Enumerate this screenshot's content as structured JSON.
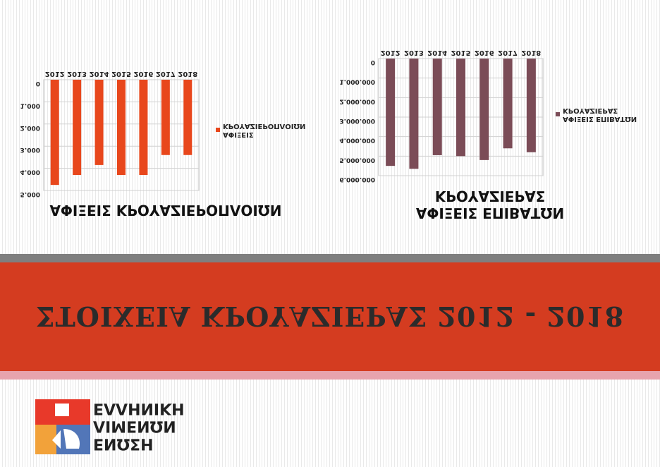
{
  "charts": {
    "chart_data": [
      {
        "type": "bar",
        "title": "ΑΦΙΞΕΙΣ ΚΡΟΥΑΖΙΕΡΟΠΛΟΙΩΝ",
        "categories": [
          "2012",
          "2013",
          "2014",
          "2015",
          "2016",
          "2017",
          "2018"
        ],
        "series": [
          {
            "name": "ΑΦΙΞΕΙΣ",
            "values": [
              4750,
              4300,
              3850,
              4300,
              4300,
              3400,
              3400
            ]
          }
        ],
        "legend_header": "ΚΡΟΥΑΖΙΕΡΟΠΛΟΙΩΝ",
        "yticks": [
          "0",
          "1.000",
          "2.000",
          "3.000",
          "4.000",
          "5.000"
        ],
        "ylim": [
          0,
          5000
        ],
        "orientation": "upside-down",
        "grid": true,
        "legend_position": "right",
        "color": "#e8471c"
      },
      {
        "type": "bar",
        "title_lines": [
          "ΑΦΙΞΕΙΣ ΕΠΙΒΑΤΩΝ",
          "ΚΡΟΥΑΖΙΕΡΑΣ"
        ],
        "categories": [
          "2012",
          "2013",
          "2014",
          "2015",
          "2016",
          "2017",
          "2018"
        ],
        "series": [
          {
            "name": "ΑΦΙΞΕΙΣ ΕΠΙΒΑΤΩΝ",
            "values": [
              5500000,
              5650000,
              4950000,
              5000000,
              5200000,
              4600000,
              4800000
            ]
          }
        ],
        "legend_header": "ΚΡΟΥΑΖΙΕΡΑΣ",
        "yticks": [
          "0",
          "1.000.000",
          "2.000.000",
          "3.000.000",
          "4.000.000",
          "5.000.000",
          "6.000.000"
        ],
        "ylim": [
          0,
          6000000
        ],
        "orientation": "upside-down",
        "grid": true,
        "legend_position": "right",
        "color": "#7b4c57"
      }
    ]
  },
  "banner": {
    "title": "ΣΤΟΙΧΕΙΑ ΚΡΟΥΑΖΙΕΡΑΣ 2012 - 2018",
    "grey_color": "#7f7f7f",
    "red_color": "#d43c20",
    "pink_color": "#e7a3ad"
  },
  "logo": {
    "line1": "ΕΛΛΗΝΙΚΗ",
    "line2": "ΛΙΜΕΝΩΝ",
    "line3": "ΕΝΩΣΗ"
  }
}
